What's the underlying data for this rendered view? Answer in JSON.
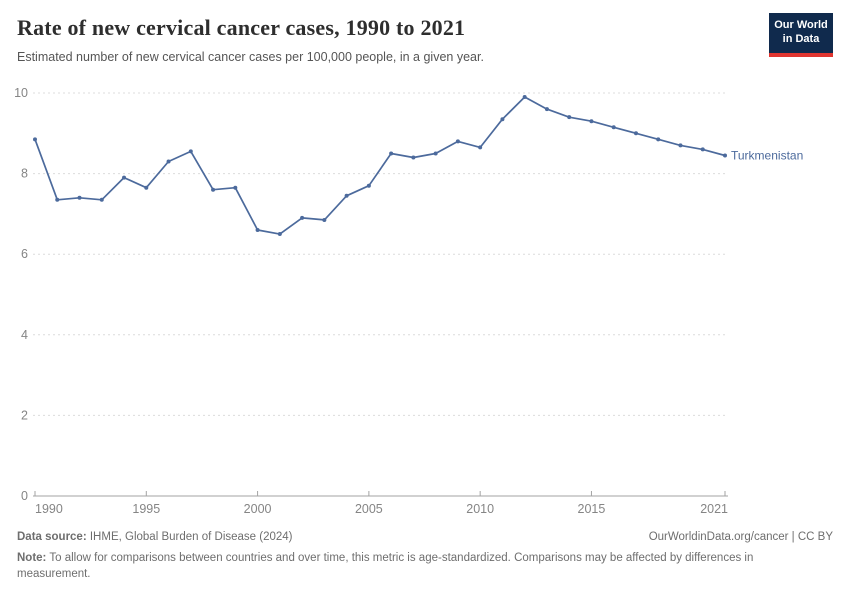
{
  "header": {
    "title": "Rate of new cervical cancer cases, 1990 to 2021",
    "subtitle": "Estimated number of new cervical cancer cases per 100,000 people, in a given year.",
    "logo_line1": "Our World",
    "logo_line2": "in Data"
  },
  "chart_data": {
    "type": "line",
    "title": "Rate of new cervical cancer cases, 1990 to 2021",
    "subtitle": "Estimated number of new cervical cancer cases per 100,000 people, in a given year.",
    "x": [
      1990,
      1991,
      1992,
      1993,
      1994,
      1995,
      1996,
      1997,
      1998,
      1999,
      2000,
      2001,
      2002,
      2003,
      2004,
      2005,
      2006,
      2007,
      2008,
      2009,
      2010,
      2011,
      2012,
      2013,
      2014,
      2015,
      2016,
      2017,
      2018,
      2019,
      2020,
      2021
    ],
    "series": [
      {
        "name": "Turkmenistan",
        "color": "#4C6A9C",
        "values": [
          8.85,
          7.35,
          7.4,
          7.35,
          7.9,
          7.65,
          8.3,
          8.55,
          7.6,
          7.65,
          6.6,
          6.5,
          6.9,
          6.85,
          7.45,
          7.7,
          8.5,
          8.4,
          8.5,
          8.8,
          8.65,
          9.35,
          9.9,
          9.6,
          9.4,
          9.3,
          9.15,
          9.0,
          8.85,
          8.7,
          8.6,
          8.45
        ]
      }
    ],
    "xticks": [
      1990,
      1995,
      2000,
      2005,
      2010,
      2015,
      2021
    ],
    "yticks": [
      0,
      2,
      4,
      6,
      8,
      10
    ],
    "ylim": [
      0,
      10
    ],
    "xlim": [
      1990,
      2021
    ],
    "grid": "horizontal-dashed",
    "legend_position": "end-of-line-label",
    "end_label": "Turkmenistan"
  },
  "footer": {
    "datasource_label": "Data source:",
    "datasource_value": " IHME, Global Burden of Disease (2024)",
    "license": "OurWorldinData.org/cancer | CC BY",
    "note_label": "Note:",
    "note_value": " To allow for comparisons between countries and over time, this metric is age-standardized. Comparisons may be affected by differences in measurement."
  },
  "colors": {
    "line": "#4C6A9C",
    "grid": "#dcdcdc",
    "axis": "#a3a3a3",
    "tick_label": "#858585",
    "logo_bg": "#102a4d",
    "logo_accent": "#e03530"
  }
}
